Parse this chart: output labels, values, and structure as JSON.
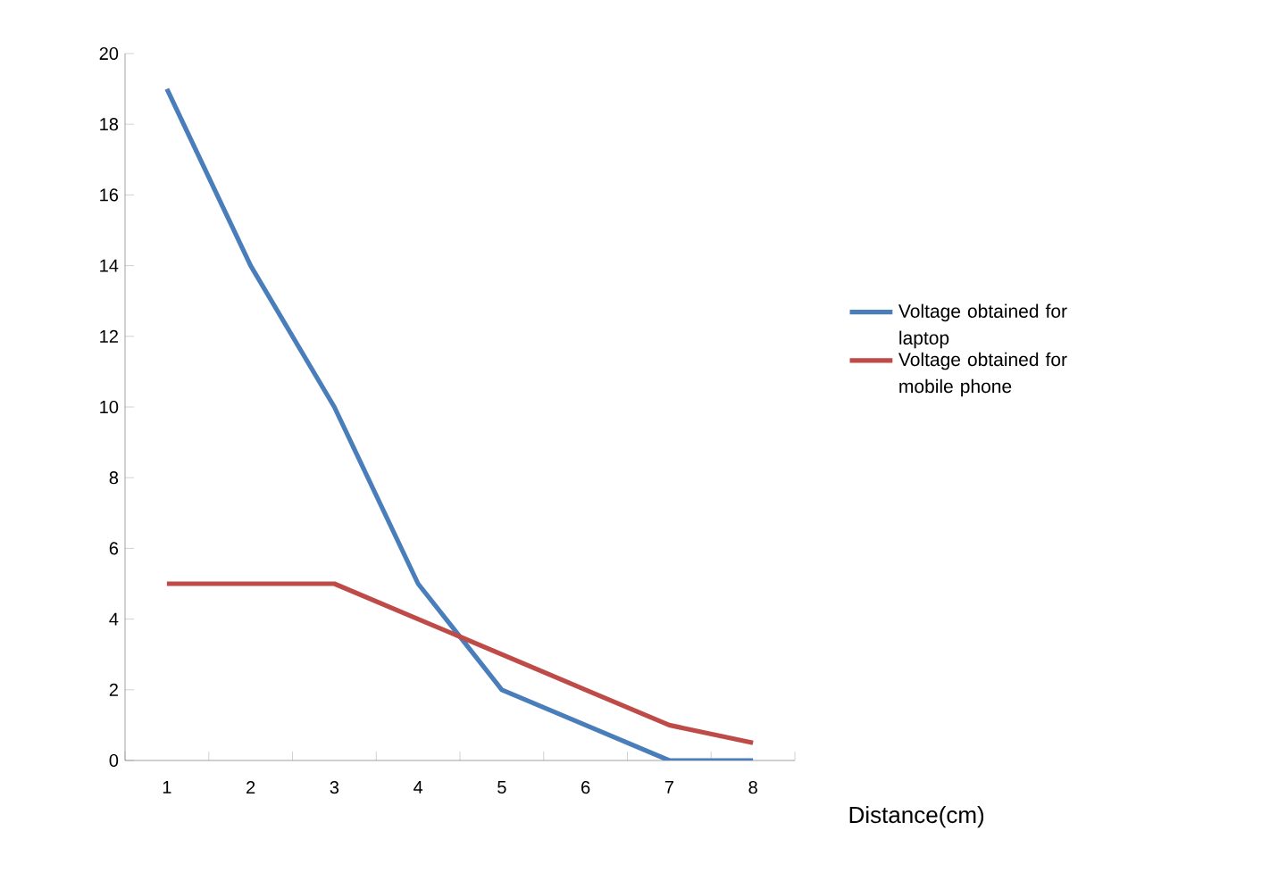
{
  "chart_data": {
    "type": "line",
    "xlabel": "Distance(cm)",
    "categories": [
      "1",
      "2",
      "3",
      "4",
      "5",
      "6",
      "7",
      "8"
    ],
    "series": [
      {
        "name": "Voltage obtained for laptop",
        "color": "#4a7ebb",
        "values": [
          19,
          14,
          10,
          5,
          2,
          1,
          0,
          0
        ]
      },
      {
        "name": "Voltage obtained for mobile phone",
        "color": "#be4b48",
        "values": [
          5,
          5,
          5,
          4,
          3,
          2,
          1,
          0.5
        ]
      }
    ],
    "ylim": [
      0,
      20
    ],
    "yticks": [
      0,
      2,
      4,
      6,
      8,
      10,
      12,
      14,
      16,
      18,
      20
    ],
    "legend": "right",
    "grid": false,
    "marker": "none",
    "line_style": "solid"
  }
}
